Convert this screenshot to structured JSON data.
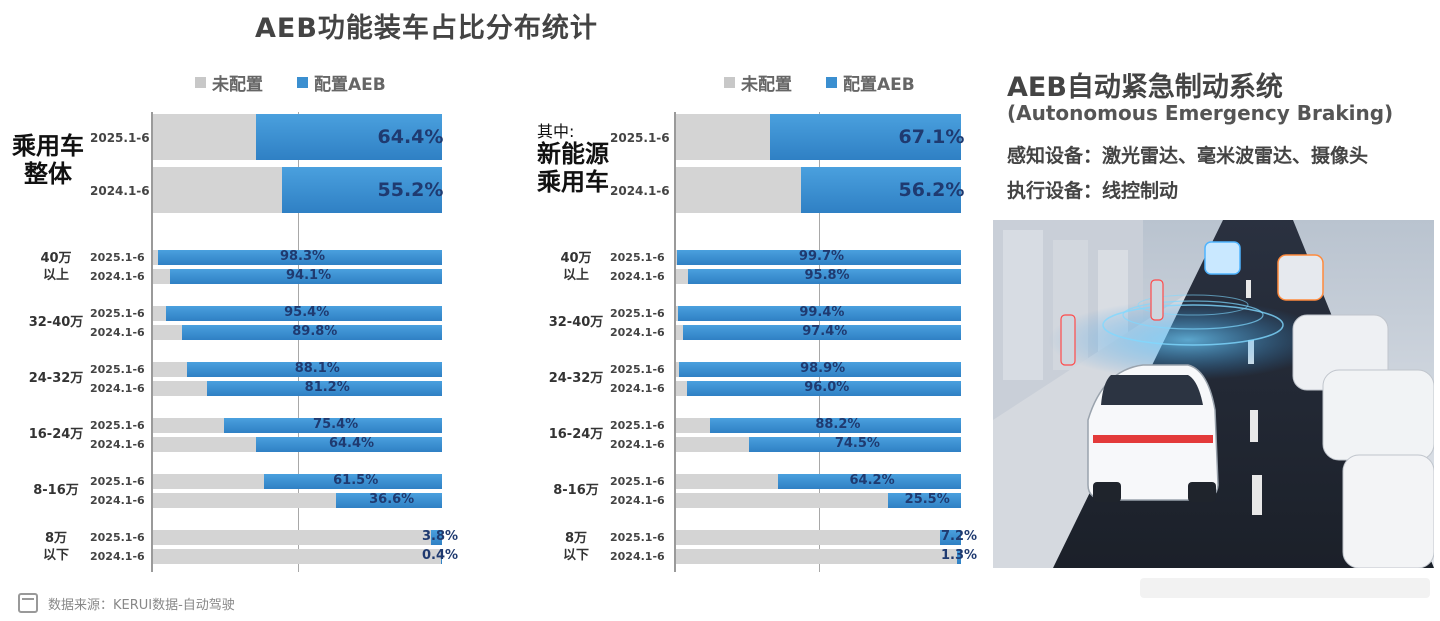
{
  "title": "AEB功能装车占比分布统计",
  "legend": {
    "unconfigured": "未配置",
    "configured": "配置AEB"
  },
  "colors": {
    "unconfigured": "#d4d4d4",
    "configured": "#3b8fd0",
    "value_text": "#1f3a70"
  },
  "left_panel": {
    "side_label_line1": "乘用车",
    "side_label_line2": "整体"
  },
  "right_panel": {
    "side_note": "其中:",
    "side_label_line1": "新能源",
    "side_label_line2": "乘用车"
  },
  "chart_data": [
    {
      "type": "bar",
      "orientation": "horizontal-stacked-100",
      "title": "",
      "series": [
        {
          "name": "配置AEB",
          "color": "#3b8fd0"
        },
        {
          "name": "未配置",
          "color": "#d4d4d4"
        }
      ],
      "summary": {
        "group": "乘用车整体",
        "rows": [
          {
            "period": "2025.1-6",
            "value": 64.4,
            "label": "64.4%"
          },
          {
            "period": "2024.1-6",
            "value": 55.2,
            "label": "55.2%"
          }
        ]
      },
      "groups": [
        {
          "name_line1": "40万",
          "name_line2": "以上",
          "rows": [
            {
              "period": "2025.1-6",
              "value": 98.3,
              "label": "98.3%"
            },
            {
              "period": "2024.1-6",
              "value": 94.1,
              "label": "94.1%"
            }
          ]
        },
        {
          "name_line1": "32-40万",
          "name_line2": "",
          "rows": [
            {
              "period": "2025.1-6",
              "value": 95.4,
              "label": "95.4%"
            },
            {
              "period": "2024.1-6",
              "value": 89.8,
              "label": "89.8%"
            }
          ]
        },
        {
          "name_line1": "24-32万",
          "name_line2": "",
          "rows": [
            {
              "period": "2025.1-6",
              "value": 88.1,
              "label": "88.1%"
            },
            {
              "period": "2024.1-6",
              "value": 81.2,
              "label": "81.2%"
            }
          ]
        },
        {
          "name_line1": "16-24万",
          "name_line2": "",
          "rows": [
            {
              "period": "2025.1-6",
              "value": 75.4,
              "label": "75.4%"
            },
            {
              "period": "2024.1-6",
              "value": 64.4,
              "label": "64.4%"
            }
          ]
        },
        {
          "name_line1": "8-16万",
          "name_line2": "",
          "rows": [
            {
              "period": "2025.1-6",
              "value": 61.5,
              "label": "61.5%"
            },
            {
              "period": "2024.1-6",
              "value": 36.6,
              "label": "36.6%"
            }
          ]
        },
        {
          "name_line1": "8万",
          "name_line2": "以下",
          "rows": [
            {
              "period": "2025.1-6",
              "value": 3.8,
              "label": "3.8%"
            },
            {
              "period": "2024.1-6",
              "value": 0.4,
              "label": "0.4%"
            }
          ]
        }
      ]
    },
    {
      "type": "bar",
      "orientation": "horizontal-stacked-100",
      "title": "",
      "series": [
        {
          "name": "配置AEB",
          "color": "#3b8fd0"
        },
        {
          "name": "未配置",
          "color": "#d4d4d4"
        }
      ],
      "summary": {
        "group": "新能源乘用车",
        "rows": [
          {
            "period": "2025.1-6",
            "value": 67.1,
            "label": "67.1%"
          },
          {
            "period": "2024.1-6",
            "value": 56.2,
            "label": "56.2%"
          }
        ]
      },
      "groups": [
        {
          "name_line1": "40万",
          "name_line2": "以上",
          "rows": [
            {
              "period": "2025.1-6",
              "value": 99.7,
              "label": "99.7%"
            },
            {
              "period": "2024.1-6",
              "value": 95.8,
              "label": "95.8%"
            }
          ]
        },
        {
          "name_line1": "32-40万",
          "name_line2": "",
          "rows": [
            {
              "period": "2025.1-6",
              "value": 99.4,
              "label": "99.4%"
            },
            {
              "period": "2024.1-6",
              "value": 97.4,
              "label": "97.4%"
            }
          ]
        },
        {
          "name_line1": "24-32万",
          "name_line2": "",
          "rows": [
            {
              "period": "2025.1-6",
              "value": 98.9,
              "label": "98.9%"
            },
            {
              "period": "2024.1-6",
              "value": 96.0,
              "label": "96.0%"
            }
          ]
        },
        {
          "name_line1": "16-24万",
          "name_line2": "",
          "rows": [
            {
              "period": "2025.1-6",
              "value": 88.2,
              "label": "88.2%"
            },
            {
              "period": "2024.1-6",
              "value": 74.5,
              "label": "74.5%"
            }
          ]
        },
        {
          "name_line1": "8-16万",
          "name_line2": "",
          "rows": [
            {
              "period": "2025.1-6",
              "value": 64.2,
              "label": "64.2%"
            },
            {
              "period": "2024.1-6",
              "value": 25.5,
              "label": "25.5%"
            }
          ]
        },
        {
          "name_line1": "8万",
          "name_line2": "以下",
          "rows": [
            {
              "period": "2025.1-6",
              "value": 7.2,
              "label": "7.2%"
            },
            {
              "period": "2024.1-6",
              "value": 1.3,
              "label": "1.3%"
            }
          ]
        }
      ]
    }
  ],
  "info": {
    "title": "AEB自动紧急制动系统",
    "subtitle": "(Autonomous Emergency Braking)",
    "line1": "感知设备：激光雷达、毫米波雷达、摄像头",
    "line2": "执行设备：线控制动"
  },
  "scene_icon": "car-radar-illustration",
  "source": "数据来源：KERUI数据-自动驾驶"
}
